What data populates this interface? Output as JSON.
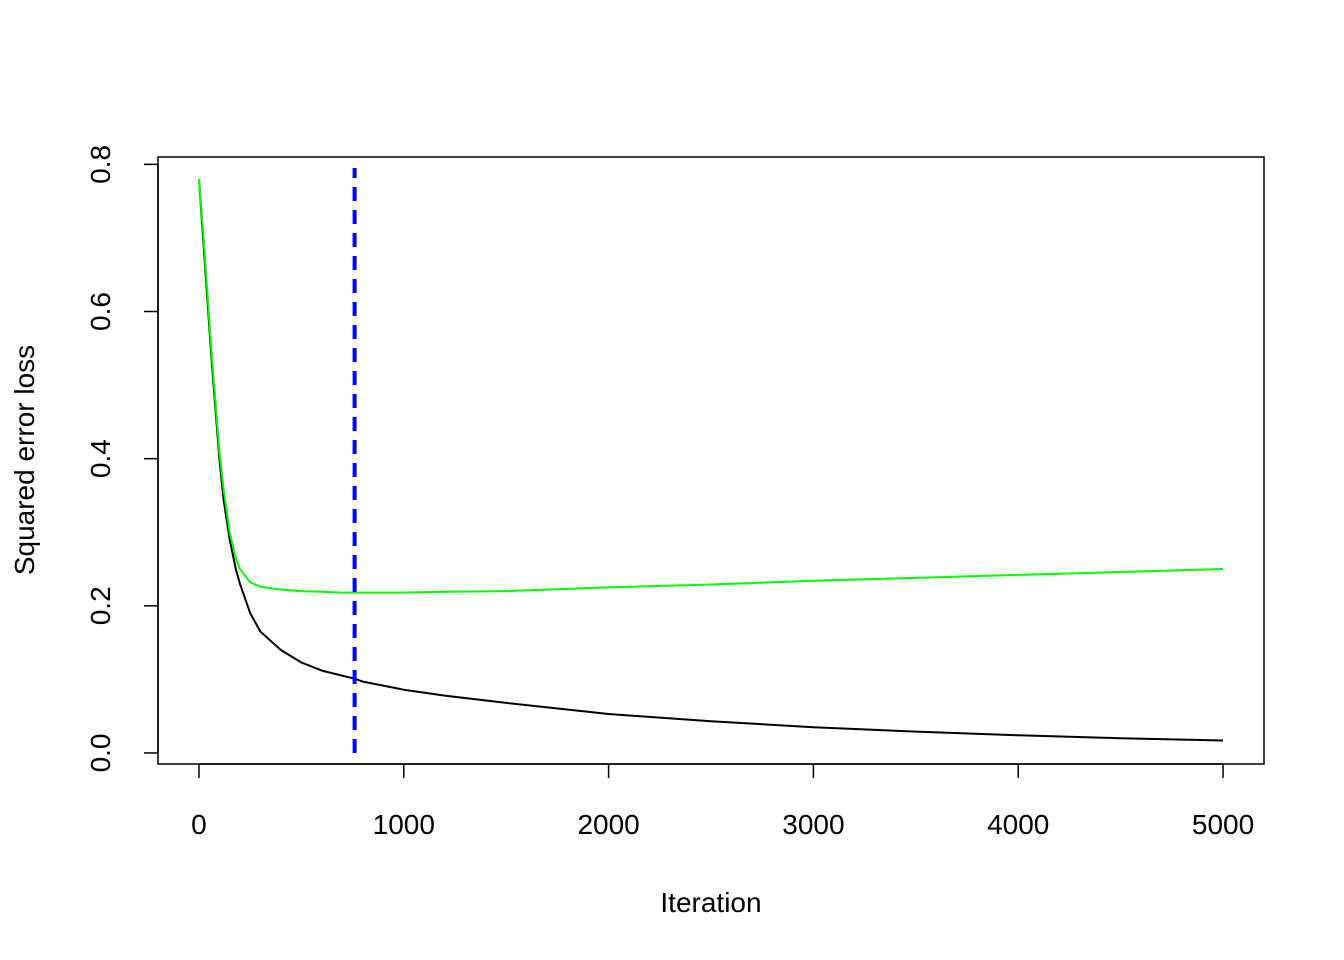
{
  "chart_data": {
    "type": "line",
    "title": "",
    "xlabel": "Iteration",
    "ylabel": "Squared error loss",
    "xlim": [
      -200,
      5200
    ],
    "ylim": [
      -0.015,
      0.81
    ],
    "xticks": [
      0,
      1000,
      2000,
      3000,
      4000,
      5000
    ],
    "xtick_labels": [
      "0",
      "1000",
      "2000",
      "3000",
      "4000",
      "5000"
    ],
    "yticks": [
      0.0,
      0.2,
      0.4,
      0.6,
      0.8
    ],
    "ytick_labels": [
      "0.0",
      "0.2",
      "0.4",
      "0.6",
      "0.8"
    ],
    "grid": false,
    "legend": "none",
    "vline": {
      "x": 760,
      "color": "#0000ff",
      "style": "dashed",
      "y_range": [
        0.0,
        0.795
      ]
    },
    "series": [
      {
        "color": "#000000",
        "x": [
          0,
          20,
          40,
          60,
          80,
          100,
          120,
          150,
          180,
          200,
          250,
          300,
          400,
          500,
          600,
          700,
          760,
          800,
          1000,
          1200,
          1500,
          2000,
          2500,
          3000,
          3500,
          4000,
          4500,
          5000
        ],
        "y": [
          0.78,
          0.7,
          0.62,
          0.54,
          0.47,
          0.4,
          0.345,
          0.29,
          0.25,
          0.23,
          0.19,
          0.165,
          0.14,
          0.123,
          0.112,
          0.105,
          0.101,
          0.097,
          0.086,
          0.078,
          0.068,
          0.053,
          0.043,
          0.035,
          0.029,
          0.024,
          0.02,
          0.017
        ]
      },
      {
        "color": "#00ff00",
        "x": [
          0,
          20,
          40,
          60,
          80,
          100,
          120,
          150,
          180,
          200,
          250,
          300,
          400,
          500,
          600,
          700,
          760,
          900,
          1000,
          1200,
          1500,
          2000,
          2500,
          3000,
          3500,
          4000,
          4500,
          5000
        ],
        "y": [
          0.78,
          0.71,
          0.63,
          0.55,
          0.48,
          0.41,
          0.36,
          0.3,
          0.265,
          0.25,
          0.232,
          0.226,
          0.222,
          0.22,
          0.219,
          0.218,
          0.218,
          0.218,
          0.218,
          0.219,
          0.22,
          0.225,
          0.229,
          0.234,
          0.238,
          0.242,
          0.246,
          0.25
        ]
      }
    ]
  }
}
